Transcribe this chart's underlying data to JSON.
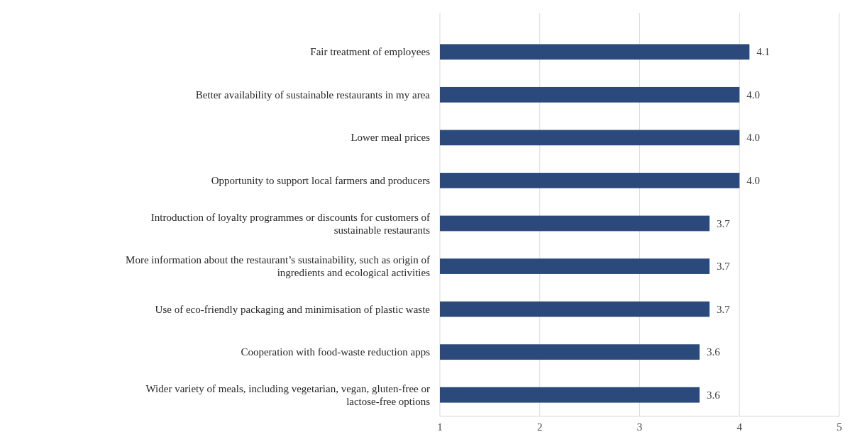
{
  "chart_data": {
    "type": "bar",
    "orientation": "horizontal",
    "categories": [
      "Fair treatment of employees",
      "Better availability of sustainable restaurants in my area",
      "Lower meal prices",
      "Opportunity to support local farmers and producers",
      "Introduction of loyalty programmes or discounts for customers of sustainable restaurants",
      "More information about the restaurant’s sustainability, such as origin of ingredients and ecological activities",
      "Use of eco-friendly packaging and minimisation of plastic waste",
      "Cooperation with food-waste reduction apps",
      "Wider variety of meals, including vegetarian, vegan, gluten-free or lactose-free options"
    ],
    "values": [
      4.1,
      4.0,
      4.0,
      4.0,
      3.7,
      3.7,
      3.7,
      3.6,
      3.6
    ],
    "value_labels": [
      "4.1",
      "4.0",
      "4.0",
      "4.0",
      "3.7",
      "3.7",
      "3.7",
      "3.6",
      "3.6"
    ],
    "color": "#2b4a7b",
    "xlim": [
      1,
      5
    ],
    "xticks": [
      1,
      2,
      3,
      4,
      5
    ],
    "grid": "x"
  }
}
